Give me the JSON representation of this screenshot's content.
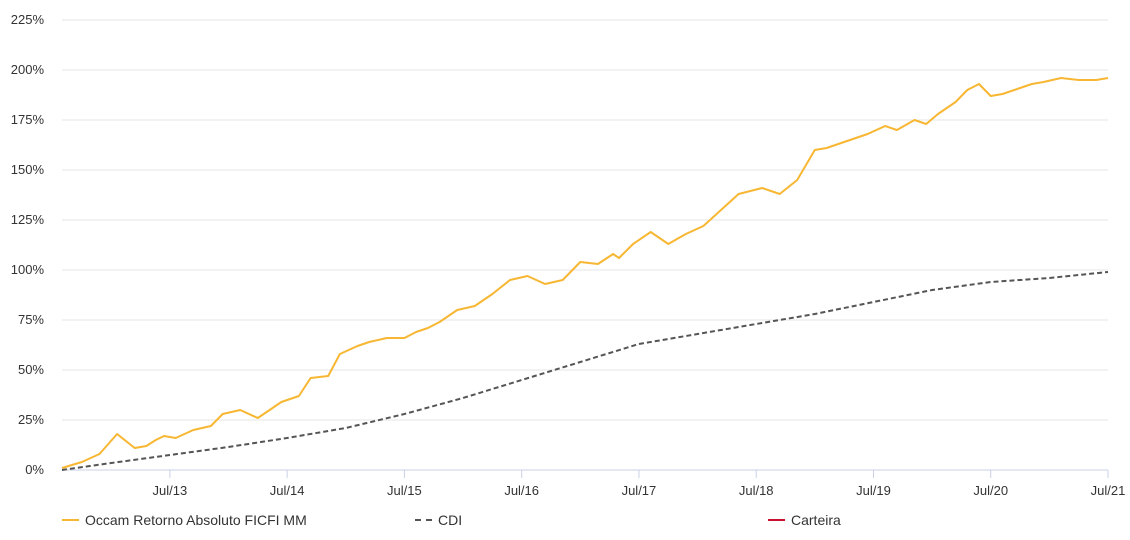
{
  "chart_data": {
    "type": "line",
    "title": "",
    "xlabel": "",
    "ylabel": "",
    "ylim": [
      0,
      225
    ],
    "y_ticks": [
      "0%",
      "25%",
      "50%",
      "75%",
      "100%",
      "125%",
      "150%",
      "175%",
      "200%",
      "225%"
    ],
    "y_tick_values": [
      0,
      25,
      50,
      75,
      100,
      125,
      150,
      175,
      200,
      225
    ],
    "x_ticks": [
      "Jul/13",
      "Jul/14",
      "Jul/15",
      "Jul/16",
      "Jul/17",
      "Jul/18",
      "Jul/19",
      "Jul/20",
      "Jul/21"
    ],
    "x_tick_values": [
      2013.5,
      2014.5,
      2015.5,
      2016.5,
      2017.5,
      2018.5,
      2019.5,
      2020.5,
      2021.5
    ],
    "xlim": [
      2012.58,
      2021.5
    ],
    "grid": true,
    "legend_position": "bottom",
    "series": [
      {
        "name": "Occam Retorno Absoluto FICFI MM",
        "color": "#f7b733",
        "style": "solid",
        "x": [
          2012.58,
          2012.75,
          2012.9,
          2013.05,
          2013.2,
          2013.3,
          2013.38,
          2013.45,
          2013.55,
          2013.7,
          2013.85,
          2013.95,
          2014.1,
          2014.25,
          2014.35,
          2014.45,
          2014.6,
          2014.7,
          2014.85,
          2014.95,
          2015.1,
          2015.2,
          2015.35,
          2015.5,
          2015.6,
          2015.7,
          2015.8,
          2015.95,
          2016.1,
          2016.25,
          2016.4,
          2016.55,
          2016.7,
          2016.85,
          2017.0,
          2017.15,
          2017.28,
          2017.33,
          2017.45,
          2017.6,
          2017.75,
          2017.9,
          2018.05,
          2018.2,
          2018.35,
          2018.55,
          2018.7,
          2018.85,
          2019.0,
          2019.1,
          2019.2,
          2019.3,
          2019.45,
          2019.6,
          2019.7,
          2019.85,
          2019.95,
          2020.05,
          2020.2,
          2020.3,
          2020.4,
          2020.5,
          2020.6,
          2020.75,
          2020.85,
          2020.95,
          2021.1,
          2021.25,
          2021.4,
          2021.5
        ],
        "y": [
          1,
          4,
          8,
          18,
          11,
          12,
          15,
          17,
          16,
          20,
          22,
          28,
          30,
          26,
          30,
          34,
          37,
          46,
          47,
          58,
          62,
          64,
          66,
          66,
          69,
          71,
          74,
          80,
          82,
          88,
          95,
          97,
          93,
          95,
          104,
          103,
          108,
          106,
          113,
          119,
          113,
          118,
          122,
          130,
          138,
          141,
          138,
          145,
          160,
          161,
          163,
          165,
          168,
          172,
          170,
          175,
          173,
          178,
          184,
          190,
          193,
          187,
          188,
          191,
          193,
          194,
          196,
          195,
          195,
          196
        ]
      },
      {
        "name": "CDI",
        "color": "#555555",
        "style": "dashed",
        "x": [
          2012.58,
          2013.0,
          2013.5,
          2014.0,
          2014.5,
          2015.0,
          2015.5,
          2016.0,
          2016.5,
          2017.0,
          2017.5,
          2018.0,
          2018.5,
          2019.0,
          2019.5,
          2020.0,
          2020.5,
          2021.0,
          2021.5
        ],
        "y": [
          0,
          3.5,
          7.5,
          11.5,
          16,
          21,
          28,
          36,
          45,
          54,
          63,
          68,
          73,
          78,
          84,
          90,
          94,
          96,
          99
        ]
      },
      {
        "name": "Carteira",
        "color": "#c8102e",
        "style": "solid",
        "x": [],
        "y": []
      }
    ]
  }
}
